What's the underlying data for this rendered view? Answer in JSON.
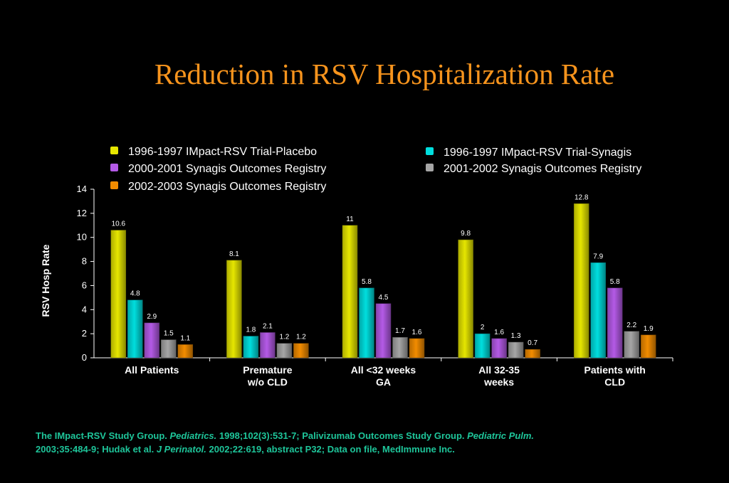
{
  "chart_data": {
    "type": "bar",
    "title": "Reduction in  RSV Hospitalization Rate",
    "ylabel": "RSV Hosp Rate",
    "xlabel": "",
    "ylim": [
      0,
      14
    ],
    "yticks": [
      0,
      2,
      4,
      6,
      8,
      10,
      12,
      14
    ],
    "grid": false,
    "legend_placement": "top",
    "categories": [
      [
        "All Patients"
      ],
      [
        "Premature",
        "w/o CLD"
      ],
      [
        "All <32 weeks",
        "GA"
      ],
      [
        "All 32-35",
        "weeks"
      ],
      [
        "Patients with",
        "CLD"
      ]
    ],
    "series": [
      {
        "name": "1996-1997 IMpact-RSV Trial-Placebo",
        "color": "#e6e600",
        "values": [
          10.6,
          8.1,
          11,
          9.8,
          12.8
        ],
        "labels": [
          "10.6",
          "8.1",
          "11",
          "9.8",
          "12.8"
        ]
      },
      {
        "name": "1996-1997 IMpact-RSV Trial-Synagis",
        "color": "#00dede",
        "values": [
          4.8,
          1.8,
          5.8,
          2,
          7.9
        ],
        "labels": [
          "4.8",
          "1.8",
          "5.8",
          "2",
          "7.9"
        ]
      },
      {
        "name": "2000-2001 Synagis Outcomes Registry",
        "color": "#b45ae6",
        "values": [
          2.9,
          2.1,
          4.5,
          1.6,
          5.8
        ],
        "labels": [
          "2.9",
          "2.1",
          "4.5",
          "1.6",
          "5.8"
        ]
      },
      {
        "name": "2001-2002 Synagis Outcomes Registry",
        "color": "#a6a6a6",
        "values": [
          1.5,
          1.2,
          1.7,
          1.3,
          2.2
        ],
        "labels": [
          "1.5",
          "1.2",
          "1.7",
          "1.3",
          "2.2"
        ]
      },
      {
        "name": "2002-2003 Synagis Outcomes Registry",
        "color": "#f28c00",
        "values": [
          1.1,
          1.2,
          1.6,
          0.7,
          1.9
        ],
        "labels": [
          "1.1",
          "1.2",
          "1.6",
          "0.7",
          "1.9"
        ]
      }
    ]
  },
  "footnote": {
    "part1": "The IMpact-RSV Study Group. ",
    "journal1": "Pediatrics.",
    "part2": " 1998;102(3):531-7; Palivizumab Outcomes Study Group. ",
    "journal2": "Pediatric Pulm.",
    "part3": "2003;35:484-9; Hudak et al. ",
    "journal3": "J Perinatol.",
    "part4": " 2002;22:619, abstract P32; Data on file, MedImmune Inc."
  }
}
